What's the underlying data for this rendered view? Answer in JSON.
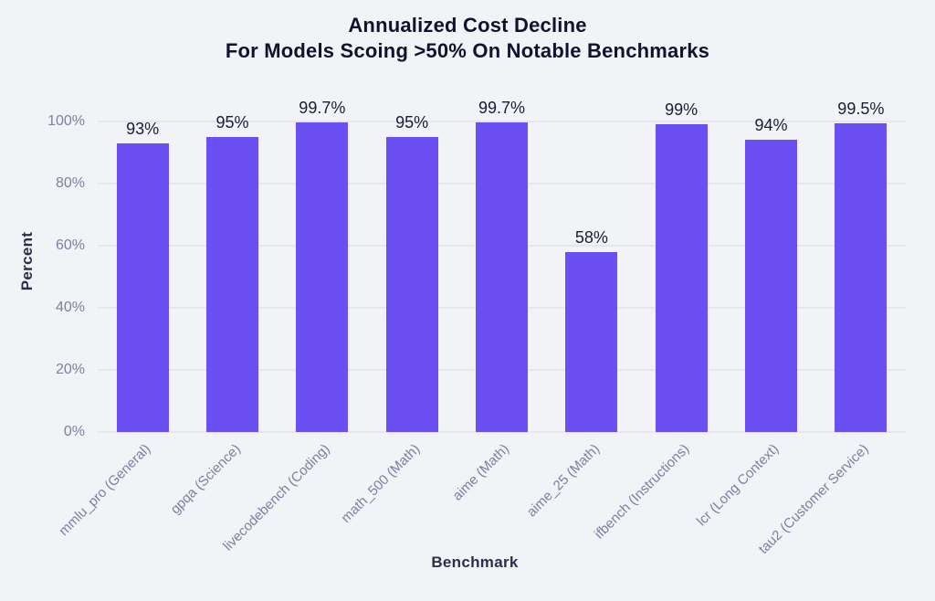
{
  "page": {
    "background_color": "#f2f3f6"
  },
  "chart_data": {
    "type": "bar",
    "title_lines": [
      "Annualized Cost Decline",
      "For Models Scoing >50% On Notable Benchmarks"
    ],
    "xlabel": "Benchmark",
    "ylabel": "Percent",
    "categories": [
      "mmlu_pro (General)",
      "gpqa (Science)",
      "livecodebench (Coding)",
      "math_500 (Math)",
      "aime (Math)",
      "aime_25 (Math)",
      "ifbench (Instructions)",
      "lcr (Long Context)",
      "tau2 (Customer Service)"
    ],
    "values": [
      93,
      95,
      99.7,
      95,
      99.7,
      58,
      99,
      94,
      99.5
    ],
    "value_labels": [
      "93%",
      "95%",
      "99.7%",
      "95%",
      "99.7%",
      "58%",
      "99%",
      "94%",
      "99.5%"
    ],
    "yticks": [
      0,
      20,
      40,
      60,
      80,
      100
    ],
    "ytick_labels": [
      "0%",
      "20%",
      "40%",
      "60%",
      "80%",
      "100%"
    ],
    "ylim": [
      0,
      110
    ],
    "grid": true,
    "legend": "none",
    "colors": {
      "bar": "#6c4ff2",
      "grid": "#e5e6ee",
      "tick_label": "#7e7ea4",
      "x_tick_label": "#7d7da5",
      "value_label": "#1b1b38",
      "title": "#12122e",
      "axis_label": "#2e2e4c",
      "background": "#f2f3f6"
    }
  }
}
